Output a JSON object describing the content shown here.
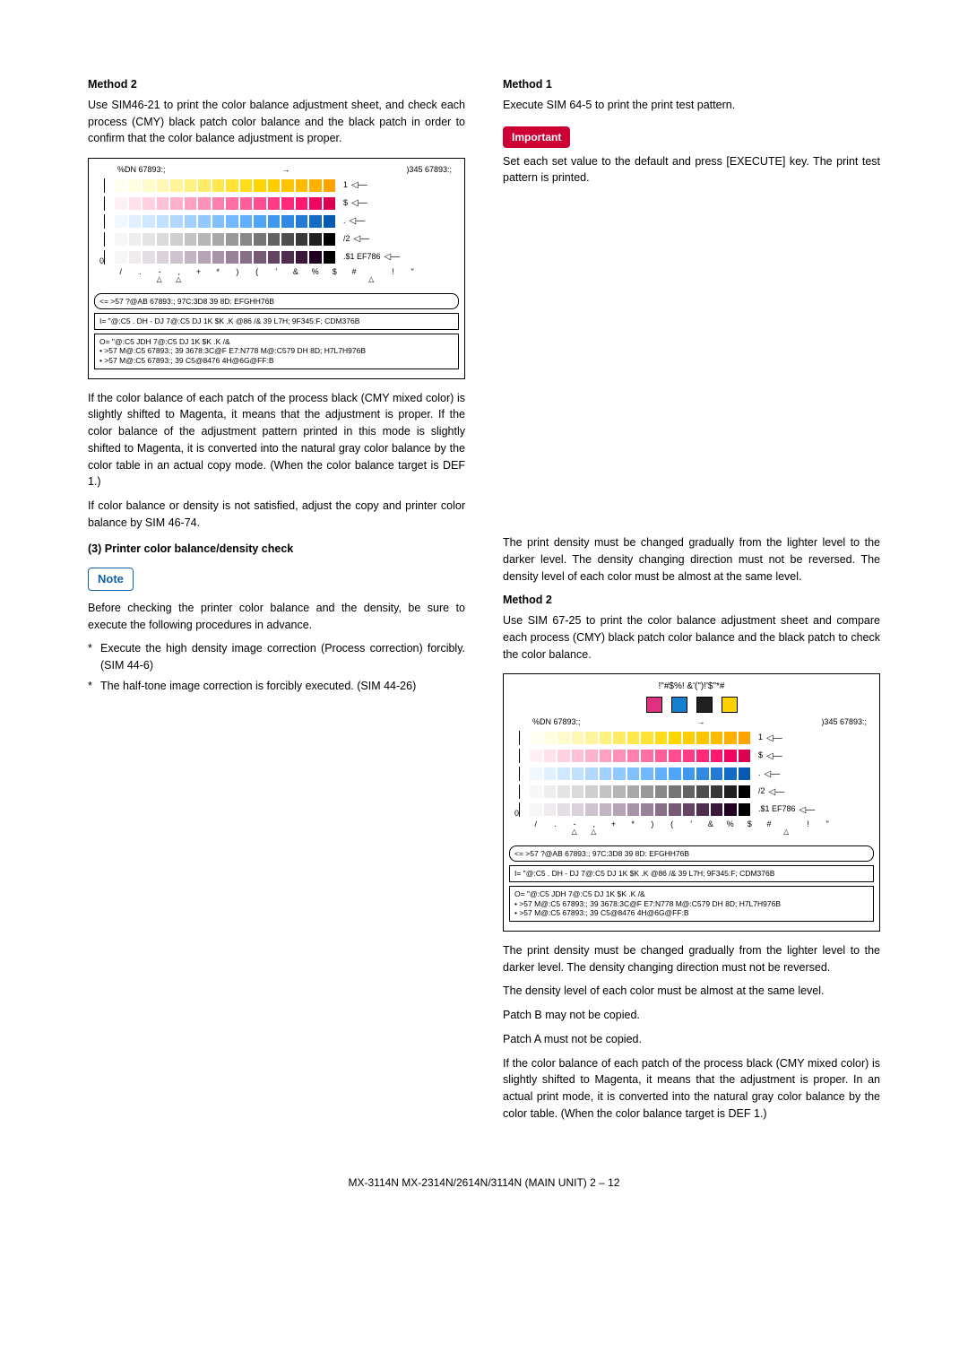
{
  "left": {
    "method2_h": "Method 2",
    "method2_p": "Use SIM46-21 to print the color balance adjustment sheet, and check each process (CMY) black patch color balance and the black patch in order to confirm that the color balance adjustment is proper.",
    "para_balance": "If the color balance of each patch of the process black (CMY mixed color) is slightly shifted to Magenta, it means that the adjustment is proper. If the color balance of the adjustment pattern printed in this mode is slightly shifted to Magenta, it is converted into the natural gray color balance by the color table in an actual copy mode. (When the color balance target is DEF 1.)",
    "para_density": "If color balance or density is not satisfied, adjust the copy and printer color balance by SIM 46-74.",
    "section3": "(3)   Printer color balance/density check",
    "note": "Note",
    "before": "Before checking the printer color balance and the density, be sure to execute the following procedures in advance.",
    "bullet1": "Execute the high density image correction (Process correction) forcibly. (SIM 44-6)",
    "bullet2": "The half-tone image correction is forcibly executed. (SIM 44-26)"
  },
  "right": {
    "method1_h": "Method 1",
    "method1_p": "Execute SIM 64-5 to print the print test pattern.",
    "important": "Important",
    "set_each": "Set each set value to the default and press [EXECUTE] key. The print test pattern is printed.",
    "density1": "The print density must be changed gradually from the lighter level to the darker level. The density changing direction must not be reversed. The density level of each color must be almost at the same level.",
    "method2_h": "Method 2",
    "method2_p": "Use SIM 67-25 to print the color balance adjustment sheet and compare each process (CMY) black patch color balance and the black patch to check the color balance.",
    "density2": "The print density must be changed gradually from the lighter level to the darker level. The density changing direction must not be reversed.",
    "samelevel": "The density level of each color must be almost at the same level.",
    "patchB": "Patch B may not be copied.",
    "patchA": "Patch A must not be copied.",
    "finalpara": "If the color balance of each patch of the process black (CMY mixed color) is slightly shifted to Magenta, it means that the adjustment is proper. In an actual print mode, it is converted into the natural gray color balance by the color table. (When the color balance target is DEF 1.)"
  },
  "chart1": {
    "tl_left": "%DN 67893:;",
    "tl_right": ")345 67893:;",
    "rows": [
      {
        "label": "1",
        "colors": [
          "#fffff0",
          "#fffde0",
          "#fffacc",
          "#fff7b3",
          "#fff499",
          "#fff080",
          "#ffec66",
          "#ffe74d",
          "#ffe233",
          "#ffdc1a",
          "#ffd500",
          "#ffce00",
          "#ffc500",
          "#ffbb00",
          "#ffb000",
          "#ffa300"
        ]
      },
      {
        "label": "$",
        "colors": [
          "#fff0f5",
          "#ffe0eb",
          "#ffd0e0",
          "#ffc0d6",
          "#ffb0cc",
          "#ffa0c2",
          "#ff90b8",
          "#ff80ae",
          "#ff6fa3",
          "#ff5e99",
          "#ff4d8f",
          "#ff3b85",
          "#ff297a",
          "#ff1770",
          "#f00560",
          "#dc0050"
        ]
      },
      {
        "label": ".",
        "colors": [
          "#f0f8ff",
          "#e0f0ff",
          "#d0e8ff",
          "#c0e0ff",
          "#b0d8ff",
          "#a0d0ff",
          "#90c8ff",
          "#80c0ff",
          "#70b8ff",
          "#60b0ff",
          "#4fa5f8",
          "#3f98ee",
          "#308ae2",
          "#217bd4",
          "#136bc4",
          "#065ab2"
        ]
      },
      {
        "label": "/2",
        "colors": [
          "#f7f7f7",
          "#eeeeee",
          "#e4e4e4",
          "#dadada",
          "#cfcfcf",
          "#c3c3c3",
          "#b6b6b6",
          "#a8a8a8",
          "#999999",
          "#888888",
          "#767676",
          "#636363",
          "#4e4e4e",
          "#383838",
          "#202020",
          "#000000"
        ]
      },
      {
        "label": ".$1 EF786",
        "colors": [
          "#f7f5f7",
          "#eeeaee",
          "#e4dee4",
          "#dad1da",
          "#cfc3cf",
          "#c3b4c3",
          "#b6a4b6",
          "#a893a8",
          "#998199",
          "#886e88",
          "#765a76",
          "#634563",
          "#4e2f4e",
          "#381838",
          "#200020",
          "#000000"
        ]
      }
    ],
    "scale": [
      "/",
      ".",
      "-",
      ",",
      "+",
      "*",
      ")",
      "(",
      "'",
      "&",
      "%",
      "$",
      "#",
      "",
      "!",
      "\""
    ],
    "legend_round": "<= >57 ?@AB 67893:; 97C:3D8 39 8D: EFGHH76B",
    "legend_box": "I= \"@:C5 . DH - DJ 7@:C5 DJ 1K $K .K @86 /& 39 L7H; 9F345:F; CDM376B",
    "legend_box2_l1": "O= \"@:C5 JDH 7@:C5 DJ 1K $K .K /&",
    "legend_box2_l2": "• >57 M@:C5 67893:; 39 3678:3C@F E7:N778 M@:C579 DH 8D; H7L7H976B",
    "legend_box2_l3": "• >57 M@:C5 67893:; 39 C5@8476 4H@6G@FF:B"
  },
  "chart2": {
    "header": "!\"#$%! &'(\")!'$\"*#",
    "tl_left": "%DN 67893:;",
    "tl_right": ")345 67893:;",
    "bigpatches": [
      "#e03080",
      "#1680d0",
      "#202020",
      "#ffd000"
    ],
    "rows": [
      {
        "label": "1",
        "colors": [
          "#fffff0",
          "#fffde0",
          "#fffacc",
          "#fff7b3",
          "#fff499",
          "#fff080",
          "#ffec66",
          "#ffe74d",
          "#ffe233",
          "#ffdc1a",
          "#ffd500",
          "#ffce00",
          "#ffc500",
          "#ffbb00",
          "#ffb000",
          "#ffa300"
        ]
      },
      {
        "label": "$",
        "colors": [
          "#fff0f5",
          "#ffe0eb",
          "#ffd0e0",
          "#ffc0d6",
          "#ffb0cc",
          "#ffa0c2",
          "#ff90b8",
          "#ff80ae",
          "#ff6fa3",
          "#ff5e99",
          "#ff4d8f",
          "#ff3b85",
          "#ff297a",
          "#ff1770",
          "#f00560",
          "#dc0050"
        ]
      },
      {
        "label": ".",
        "colors": [
          "#f0f8ff",
          "#e0f0ff",
          "#d0e8ff",
          "#c0e0ff",
          "#b0d8ff",
          "#a0d0ff",
          "#90c8ff",
          "#80c0ff",
          "#70b8ff",
          "#60b0ff",
          "#4fa5f8",
          "#3f98ee",
          "#308ae2",
          "#217bd4",
          "#136bc4",
          "#065ab2"
        ]
      },
      {
        "label": "/2",
        "colors": [
          "#f7f7f7",
          "#eeeeee",
          "#e4e4e4",
          "#dadada",
          "#cfcfcf",
          "#c3c3c3",
          "#b6b6b6",
          "#a8a8a8",
          "#999999",
          "#888888",
          "#767676",
          "#636363",
          "#4e4e4e",
          "#383838",
          "#202020",
          "#000000"
        ]
      },
      {
        "label": ".$1 EF786",
        "colors": [
          "#f7f5f7",
          "#eeeaee",
          "#e4dee4",
          "#dad1da",
          "#cfc3cf",
          "#c3b4c3",
          "#b6a4b6",
          "#a893a8",
          "#998199",
          "#886e88",
          "#765a76",
          "#634563",
          "#4e2f4e",
          "#381838",
          "#200020",
          "#000000"
        ]
      }
    ],
    "scale": [
      "/",
      ".",
      "-",
      ",",
      "+",
      "*",
      ")",
      "(",
      "'",
      "&",
      "%",
      "$",
      "#",
      "",
      "!",
      "\""
    ],
    "legend_round": "<= >57 ?@AB 67893:; 97C:3D8 39 8D: EFGHH76B",
    "legend_box": "I= \"@:C5 . DH - DJ 7@:C5 DJ 1K $K .K @86 /& 39 L7H; 9F345:F; CDM376B",
    "legend_box2_l1": "O= \"@:C5 JDH 7@:C5 DJ 1K $K .K /&",
    "legend_box2_l2": "• >57 M@:C5 67893:; 39 3678:3C@F E7:N778 M@:C579 DH 8D; H7L7H976B",
    "legend_box2_l3": "• >57 M@:C5 67893:; 39 C5@8476 4H@6G@FF:B"
  },
  "footer": "MX-3114N  MX-2314N/2614N/3114N (MAIN UNIT)  2 – 12"
}
